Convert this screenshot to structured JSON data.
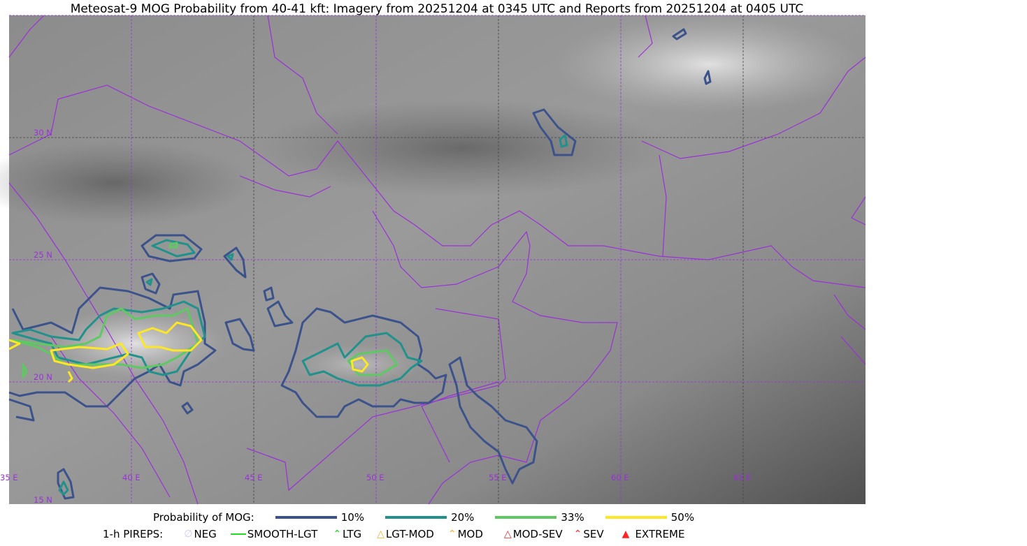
{
  "title": "Meteosat-9 MOG Probability from 40-41 kft: Imagery from 20251204 at 0345 UTC and Reports from 20251204 at 0405 UTC",
  "map": {
    "extent": {
      "lon": [
        35,
        70
      ],
      "lat": [
        15,
        35
      ]
    },
    "lat_labels": [
      "30 N",
      "25 N",
      "20 N",
      "15 N"
    ],
    "lon_labels": [
      "35 E",
      "40 E",
      "45 E",
      "50 E",
      "55 E",
      "60 E",
      "65 E"
    ],
    "border_color": "#9b30d9"
  },
  "legend": {
    "prob_label": "Probability of MOG:",
    "levels": [
      {
        "label": "10%",
        "color": "#3b528b"
      },
      {
        "label": "20%",
        "color": "#21918c"
      },
      {
        "label": "33%",
        "color": "#5ec962"
      },
      {
        "label": "50%",
        "color": "#fde725"
      }
    ],
    "pirep_label": "1-h PIREPS:",
    "pireps": [
      {
        "label": "NEG",
        "color": "#c8c8ff",
        "icon": "neg-icon"
      },
      {
        "label": "SMOOTH-LGT",
        "color": "#22dd22",
        "icon": "line-icon"
      },
      {
        "label": "LTG",
        "color": "#00dd00",
        "icon": "caret-icon"
      },
      {
        "label": "LGT-MOD",
        "color": "#ffaa22",
        "icon": "hat-icon"
      },
      {
        "label": "MOD",
        "color": "#ffaa22",
        "icon": "caret-icon"
      },
      {
        "label": "MOD-SEV",
        "color": "#ff2222",
        "icon": "double-hat-icon"
      },
      {
        "label": "SEV",
        "color": "#ff2222",
        "icon": "double-caret-icon"
      },
      {
        "label": "EXTREME",
        "color": "#ff2222",
        "icon": "triangle-icon"
      }
    ]
  }
}
